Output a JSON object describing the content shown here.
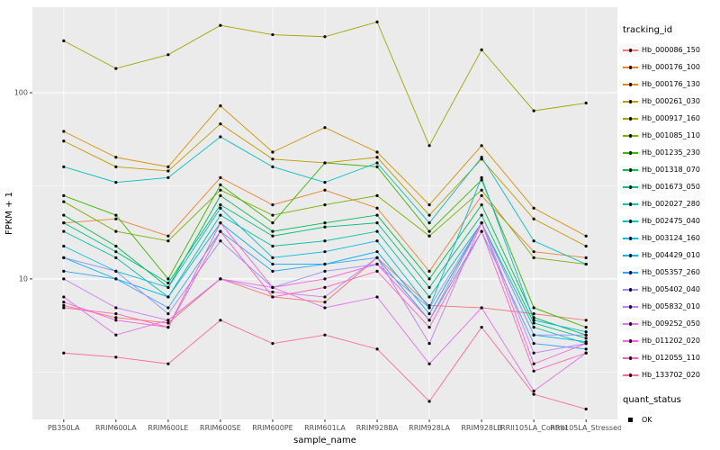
{
  "chart_data": {
    "type": "line",
    "title": "",
    "xlabel": "sample_name",
    "ylabel": "FPKM + 1",
    "y_scale": "log10",
    "y_ticks": [
      10,
      100
    ],
    "y_minor_ticks": [
      3.162,
      31.62,
      316.2
    ],
    "ylim": [
      1.76,
      288
    ],
    "grid": true,
    "legend_position": "right",
    "point_color": "#000000",
    "categories": [
      "PB350LA",
      "RRIM600LA",
      "RRIM600LE",
      "RRIM600SE",
      "RRIM600PE",
      "RRIM601LA",
      "RRIM928BA",
      "RRIM928LA",
      "RRIM928LB",
      "RRII105LA_Control",
      "RRII105LA_Stressed"
    ],
    "series": [
      {
        "name": "Hb_000086_150",
        "color": "#F8766D",
        "values": [
          7.2,
          6.2,
          5.8,
          10,
          8,
          7.5,
          13,
          7.2,
          7,
          6.5,
          6
        ]
      },
      {
        "name": "Hb_000176_100",
        "color": "#EA8331",
        "values": [
          20,
          21,
          17,
          35,
          25,
          30,
          24,
          11,
          28,
          14,
          13
        ]
      },
      {
        "name": "Hb_000176_130",
        "color": "#D89000",
        "values": [
          62,
          45,
          40,
          85,
          48,
          65,
          48,
          25,
          52,
          24,
          17
        ]
      },
      {
        "name": "Hb_000261_030",
        "color": "#C09B00",
        "values": [
          55,
          40,
          38,
          68,
          44,
          42,
          45,
          22,
          44,
          21,
          15
        ]
      },
      {
        "name": "Hb_000917_160",
        "color": "#A3A500",
        "values": [
          190,
          135,
          160,
          230,
          205,
          200,
          240,
          52,
          170,
          80,
          88
        ]
      },
      {
        "name": "Hb_001085_110",
        "color": "#7CAE00",
        "values": [
          26,
          18,
          16,
          30,
          22,
          25,
          28,
          17,
          30,
          13,
          12
        ]
      },
      {
        "name": "Hb_001235_230",
        "color": "#39B600",
        "values": [
          28,
          22,
          10,
          32,
          20,
          42,
          40,
          18,
          34,
          7,
          5.5
        ]
      },
      {
        "name": "Hb_001318_070",
        "color": "#00BB4E",
        "values": [
          22,
          15,
          9,
          28,
          18,
          20,
          22,
          10,
          25,
          6.2,
          5
        ]
      },
      {
        "name": "Hb_001673_050",
        "color": "#00BF7D",
        "values": [
          20,
          14,
          9.5,
          25,
          17,
          19,
          20,
          9,
          22,
          5.8,
          4.8
        ]
      },
      {
        "name": "Hb_002027_280",
        "color": "#00C1A3",
        "values": [
          18,
          13,
          8,
          22,
          15,
          16,
          18,
          8,
          20,
          5.5,
          4.5
        ]
      },
      {
        "name": "Hb_002475_040",
        "color": "#00BFC4",
        "values": [
          40,
          33,
          35,
          58,
          40,
          33,
          42,
          20,
          45,
          16,
          12
        ]
      },
      {
        "name": "Hb_003124_160",
        "color": "#00BAE0",
        "values": [
          15,
          11,
          9,
          24,
          13,
          14,
          16,
          7,
          35,
          6,
          5.2
        ]
      },
      {
        "name": "Hb_004429_010",
        "color": "#00B0F6",
        "values": [
          13,
          10,
          8,
          20,
          12,
          12,
          14,
          6.5,
          20,
          5,
          4.6
        ]
      },
      {
        "name": "Hb_005357_260",
        "color": "#35A2FF",
        "values": [
          11,
          10,
          7,
          18,
          11,
          12,
          13,
          6,
          18,
          4.5,
          4.2
        ]
      },
      {
        "name": "Hb_005402_040",
        "color": "#9590FF",
        "values": [
          13,
          11,
          6.5,
          16,
          9,
          11,
          12,
          7,
          20,
          5,
          5
        ]
      },
      {
        "name": "Hb_005832_010",
        "color": "#C77CFF",
        "values": [
          10,
          7,
          6,
          10,
          8.5,
          8,
          13,
          4.5,
          20,
          4,
          4.5
        ]
      },
      {
        "name": "Hb_009252_050",
        "color": "#E76BF3",
        "values": [
          8,
          5,
          6,
          10,
          9,
          7,
          8,
          3.5,
          7,
          2.5,
          4
        ]
      },
      {
        "name": "Hb_011202_020",
        "color": "#FA62DB",
        "values": [
          7.5,
          6,
          5.5,
          20,
          9,
          10,
          12,
          6,
          20,
          3.5,
          4.5
        ]
      },
      {
        "name": "Hb_012055_110",
        "color": "#FF62BC",
        "values": [
          7,
          6.5,
          5.5,
          18,
          8,
          9,
          11,
          5.5,
          18,
          3.2,
          4
        ]
      },
      {
        "name": "Hb_133702_020",
        "color": "#FF6A98",
        "values": [
          4,
          3.8,
          3.5,
          6,
          4.5,
          5,
          4.2,
          2.2,
          5.5,
          2.4,
          2
        ]
      }
    ]
  },
  "legend": {
    "title": "tracking_id"
  },
  "legend2": {
    "title": "quant_status",
    "items": [
      {
        "label": "OK"
      }
    ]
  },
  "panel": {
    "bg": "#EBEBEB",
    "grid_major": "#FFFFFF",
    "grid_minor": "#FFFFFF",
    "tick_color": "#333333",
    "tick_label_color": "#4D4D4D"
  }
}
